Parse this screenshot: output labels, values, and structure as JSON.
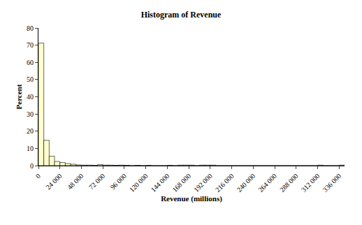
{
  "chart_data": {
    "type": "histogram",
    "title": "Histogram of Revenue",
    "x_label": "Revenue (millions)",
    "y_label": "Percent",
    "bins": [
      0,
      6000,
      12000,
      18000,
      24000,
      30000,
      36000,
      42000,
      48000,
      54000,
      60000,
      66000,
      72000,
      78000,
      84000,
      90000,
      96000,
      102000,
      108000,
      114000,
      120000,
      126000,
      132000,
      138000,
      144000,
      150000,
      156000,
      162000,
      168000,
      174000,
      180000,
      186000,
      192000,
      198000,
      204000,
      210000,
      216000,
      222000,
      228000,
      234000,
      240000,
      246000,
      252000,
      258000,
      264000,
      270000,
      276000,
      282000,
      288000,
      294000,
      300000,
      306000,
      312000,
      318000,
      324000,
      330000,
      336000,
      342000
    ],
    "values": [
      71.2,
      14.7,
      5.5,
      2.4,
      1.8,
      1.2,
      0.8,
      0.4,
      0.3,
      0.3,
      0.2,
      0.6,
      0.3,
      0.3,
      0.2,
      0.3,
      0.2,
      0,
      0.2,
      0,
      0.2,
      0,
      0,
      0,
      0.2,
      0,
      0.3,
      0.3,
      0.3,
      0,
      0.3,
      0.3,
      0.3,
      0,
      0,
      0,
      0,
      0,
      0,
      0,
      0,
      0,
      0,
      0,
      0,
      0,
      0,
      0,
      0,
      0,
      0,
      0,
      0.3,
      0,
      0,
      0,
      0.3
    ],
    "color": "#ffffcc",
    "xlim": [
      0,
      342000
    ],
    "xticks": [
      0,
      {
        "value": 24000,
        "label": "24 000"
      },
      {
        "value": 48000,
        "label": "48 000"
      },
      {
        "value": 72000,
        "label": "72 000"
      },
      {
        "value": 96000,
        "label": "96 000"
      },
      {
        "value": 120000,
        "label": "120 000"
      },
      {
        "value": 144000,
        "label": "144 000"
      },
      {
        "value": 168000,
        "label": "168 000"
      },
      {
        "value": 192000,
        "label": "192 000"
      },
      {
        "value": 216000,
        "label": "216 000"
      },
      {
        "value": 240000,
        "label": "240 000"
      },
      {
        "value": 264000,
        "label": "264 000"
      },
      {
        "value": 288000,
        "label": "288 000"
      },
      {
        "value": 312000,
        "label": "312 000"
      },
      {
        "value": 336000,
        "label": "336 000"
      }
    ],
    "ylim": [
      0,
      80
    ],
    "yticks": [
      0,
      10,
      20,
      30,
      40,
      50,
      60,
      70,
      80
    ],
    "grid": false
  }
}
